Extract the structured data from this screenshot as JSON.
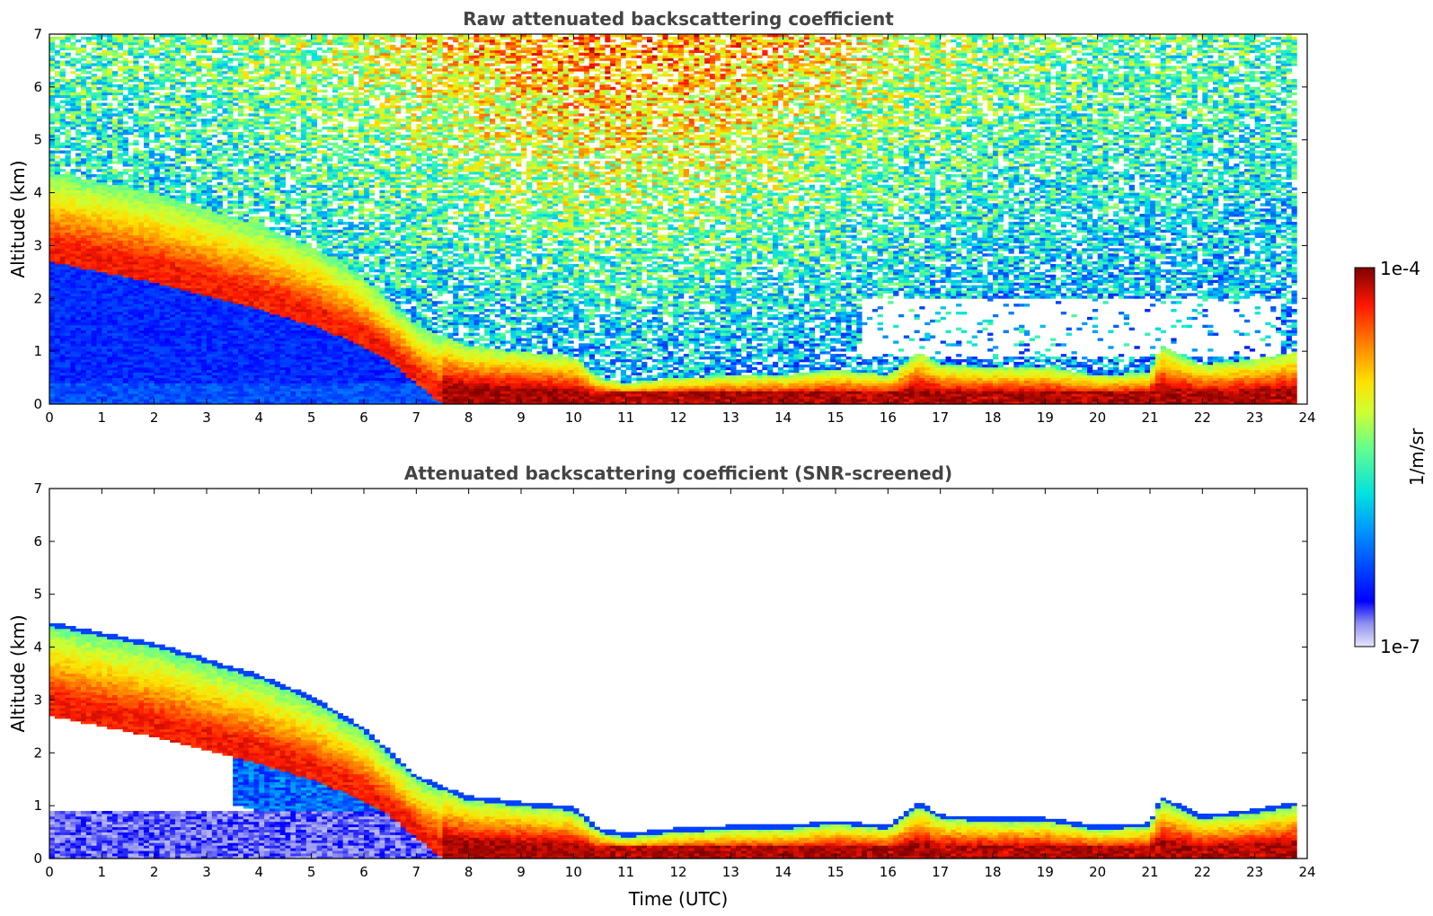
{
  "chart_data": [
    {
      "type": "heatmap",
      "title": "Raw attenuated backscattering coefficient",
      "xlabel": "",
      "ylabel": "Altitude (km)",
      "xlim": [
        0,
        24
      ],
      "ylim": [
        0,
        7
      ],
      "x_ticks": [
        "0",
        "1",
        "2",
        "3",
        "4",
        "5",
        "6",
        "7",
        "8",
        "9",
        "10",
        "11",
        "12",
        "13",
        "14",
        "15",
        "16",
        "17",
        "18",
        "19",
        "20",
        "21",
        "22",
        "23",
        "24"
      ],
      "y_ticks": [
        "0",
        "1",
        "2",
        "3",
        "4",
        "5",
        "6",
        "7"
      ],
      "data_end_hour": 23.8,
      "features": {
        "aerosol_layer_top_km": [
          [
            0,
            4.4
          ],
          [
            2,
            4.0
          ],
          [
            4,
            3.4
          ],
          [
            5,
            3.0
          ],
          [
            6,
            2.4
          ],
          [
            7,
            1.5
          ],
          [
            8,
            1.1
          ],
          [
            9,
            1.0
          ],
          [
            10,
            0.9
          ],
          [
            10.5,
            0.5
          ],
          [
            11,
            0.4
          ],
          [
            12,
            0.5
          ],
          [
            13,
            0.55
          ],
          [
            14,
            0.55
          ],
          [
            15,
            0.65
          ],
          [
            16,
            0.55
          ],
          [
            16.6,
            1.0
          ],
          [
            17,
            0.75
          ],
          [
            18,
            0.7
          ],
          [
            19,
            0.7
          ],
          [
            20,
            0.55
          ],
          [
            21,
            0.6
          ],
          [
            21.2,
            1.1
          ],
          [
            22,
            0.75
          ],
          [
            23,
            0.85
          ],
          [
            23.8,
            1.0
          ]
        ],
        "aerosol_layer_base_km": [
          [
            0,
            2.7
          ],
          [
            2,
            2.3
          ],
          [
            4,
            1.8
          ],
          [
            5,
            1.5
          ],
          [
            6,
            1.1
          ],
          [
            6.5,
            0.8
          ],
          [
            7,
            0.4
          ],
          [
            7.5,
            0.0
          ]
        ],
        "noise_clear_region": {
          "hours": [
            15.5,
            23.5
          ],
          "altitude_km": [
            0.9,
            2.0
          ]
        }
      }
    },
    {
      "type": "heatmap",
      "title": "Attenuated backscattering coefficient (SNR-screened)",
      "xlabel": "Time (UTC)",
      "ylabel": "Altitude (km)",
      "xlim": [
        0,
        24
      ],
      "ylim": [
        0,
        7
      ],
      "x_ticks": [
        "0",
        "1",
        "2",
        "3",
        "4",
        "5",
        "6",
        "7",
        "8",
        "9",
        "10",
        "11",
        "12",
        "13",
        "14",
        "15",
        "16",
        "17",
        "18",
        "19",
        "20",
        "21",
        "22",
        "23",
        "24"
      ],
      "y_ticks": [
        "0",
        "1",
        "2",
        "3",
        "4",
        "5",
        "6",
        "7"
      ],
      "data_end_hour": 23.8
    }
  ],
  "colorbar": {
    "label": "1/m/sr",
    "max_label": "1e-4",
    "min_label": "1e-7",
    "scale": "log",
    "colormap": "jet",
    "stops": [
      "#e6e6fa",
      "#0000ff",
      "#00bfff",
      "#00ffb0",
      "#a0ff40",
      "#ffff00",
      "#ffa000",
      "#ff2000",
      "#800000"
    ]
  }
}
